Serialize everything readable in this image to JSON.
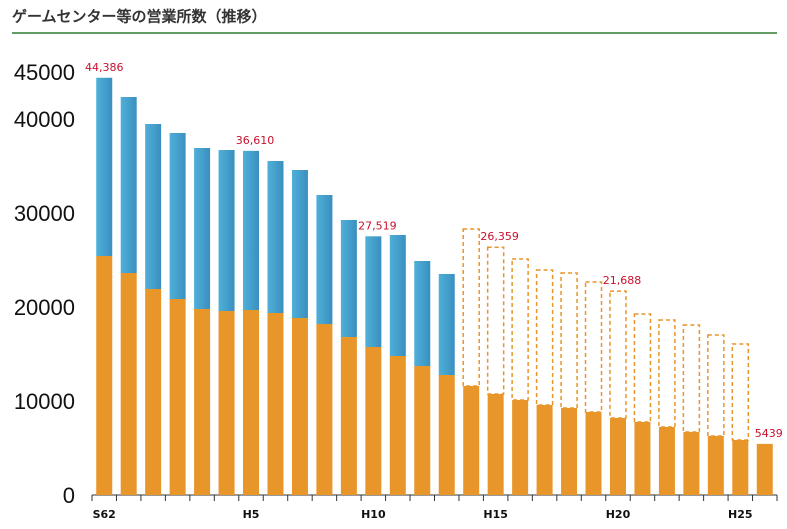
{
  "chart_data": {
    "type": "stacked-bar",
    "title": "ゲームセンター等の営業所数（推移）",
    "categories": [
      "S62",
      null,
      null,
      null,
      null,
      null,
      "H5",
      null,
      null,
      null,
      null,
      "H10",
      null,
      null,
      null,
      null,
      "H15",
      null,
      null,
      null,
      null,
      "H20",
      null,
      null,
      null,
      null,
      "H25",
      null
    ],
    "series": [
      {
        "color": "#e8952a",
        "style": "solid",
        "values": [
          25426,
          23617,
          21915,
          20851,
          19787,
          19574,
          19681,
          19362,
          18830,
          18191,
          16809,
          15745,
          14787,
          13723,
          12766,
          11596,
          10745,
          10106,
          9574,
          9255,
          8830,
          8191,
          7766,
          7234,
          6702,
          6277,
          5851,
          5439
        ]
      },
      {
        "color": "#4fb0d8",
        "style": "solid",
        "values": [
          18960,
          18723,
          17553,
          17660,
          17128,
          17128,
          16929,
          16170,
          15744,
          13724,
          12446,
          11774,
          12873,
          11171,
          10745,
          null,
          null,
          null,
          null,
          null,
          null,
          null,
          null,
          null,
          null,
          null,
          null,
          null
        ]
      },
      {
        "color": "#e8952a",
        "style": "dashed",
        "values": [
          null,
          null,
          null,
          null,
          null,
          null,
          null,
          null,
          null,
          null,
          null,
          null,
          null,
          null,
          null,
          16702,
          15614,
          14994,
          14362,
          14362,
          13830,
          13497,
          11489,
          11383,
          11383,
          10744,
          10213,
          null
        ]
      }
    ],
    "total_labels": [
      "44,386",
      null,
      null,
      null,
      null,
      null,
      "36,610",
      null,
      null,
      null,
      null,
      "27,519",
      null,
      null,
      null,
      null,
      "26,359",
      null,
      null,
      null,
      null,
      "21,688",
      null,
      null,
      null,
      null,
      null,
      "5439"
    ],
    "ylim": [
      0,
      45000
    ],
    "yticks": [
      0,
      10000,
      20000,
      30000,
      40000,
      45000
    ],
    "title_rule_color": "#2e7d32"
  }
}
